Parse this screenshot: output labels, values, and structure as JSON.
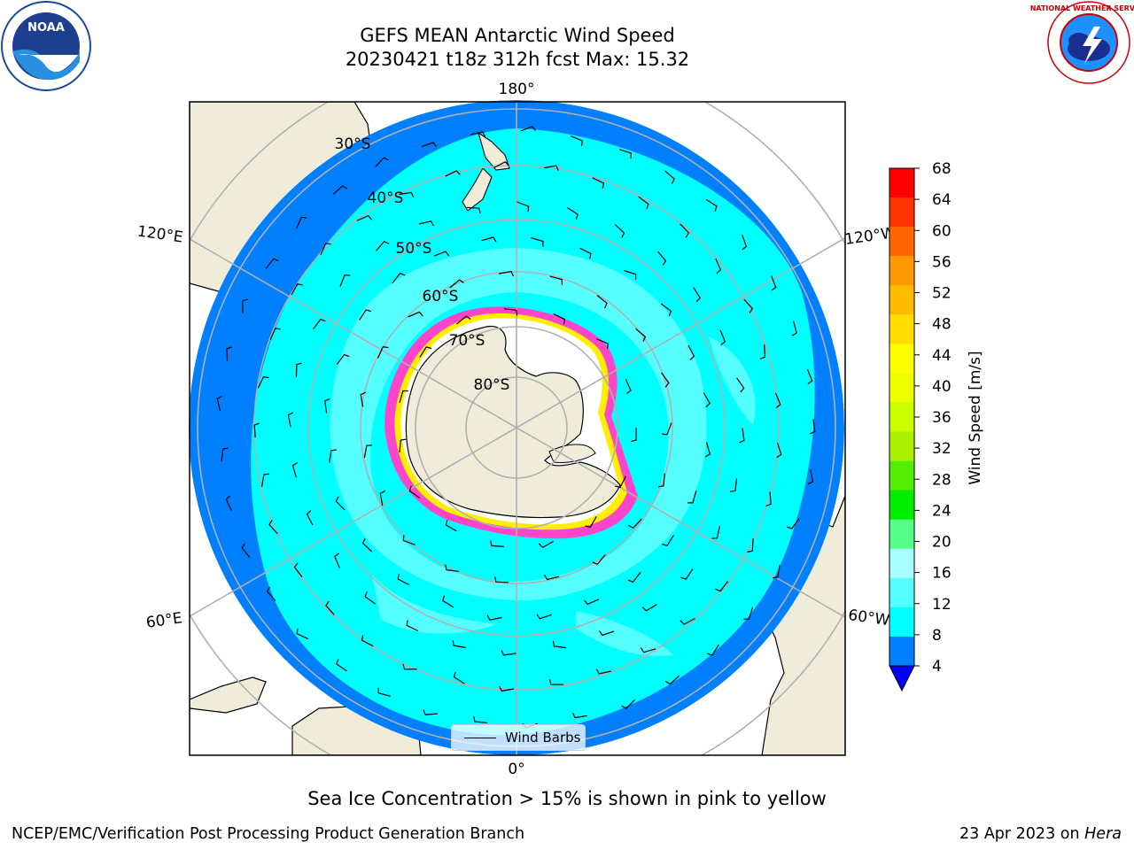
{
  "header": {
    "title_line1": "GEFS MEAN Antarctic Wind Speed",
    "title_line2": "20230421 t18z 312h fcst   Max: 15.32",
    "logo_left": "noara-logo",
    "logo_left_text": "NOAA",
    "logo_right": "national-weather-service-logo",
    "logo_right_text": "NATIONAL WEATHER SERVICE"
  },
  "map": {
    "projection": "south-polar-stereographic",
    "meridian_labels": {
      "top": "180°",
      "bottom": "0°",
      "left_upper": "120°E",
      "right_upper": "120°W",
      "left_lower": "60°E",
      "right_lower": "60°W"
    },
    "parallel_labels": [
      "30°S",
      "40°S",
      "50°S",
      "60°S",
      "70°S",
      "80°S"
    ],
    "legend_label": "Wind Barbs",
    "colors": {
      "ocean_low": "#0080ff",
      "ocean_mid": "#00ffff",
      "ocean_high": "#55ffff",
      "land": "#efedda",
      "sea_ice_edge": "#ff33cc",
      "ice_shelf": "#ffffff",
      "graticule": "#b0b0b0"
    }
  },
  "colorbar": {
    "label": "Wind Speed [m/s]",
    "ticks": [
      "4",
      "8",
      "12",
      "16",
      "20",
      "24",
      "28",
      "32",
      "36",
      "40",
      "44",
      "48",
      "52",
      "56",
      "60",
      "64",
      "68"
    ],
    "colors": [
      "#0080ff",
      "#00ffff",
      "#55ffff",
      "#aaffff",
      "#55ff88",
      "#00ee00",
      "#55ee00",
      "#aaee00",
      "#ccff00",
      "#eeff00",
      "#ffff00",
      "#ffdd00",
      "#ffbb00",
      "#ff9900",
      "#ff6600",
      "#ff3300",
      "#ff0000"
    ],
    "under_color": "#0000ff"
  },
  "footer": {
    "caption": "Sea Ice Concentration > 15% is shown in pink to yellow",
    "left": "NCEP/EMC/Verification Post Processing Product Generation Branch",
    "right_date": "23 Apr 2023 on ",
    "right_host": "Hera"
  }
}
